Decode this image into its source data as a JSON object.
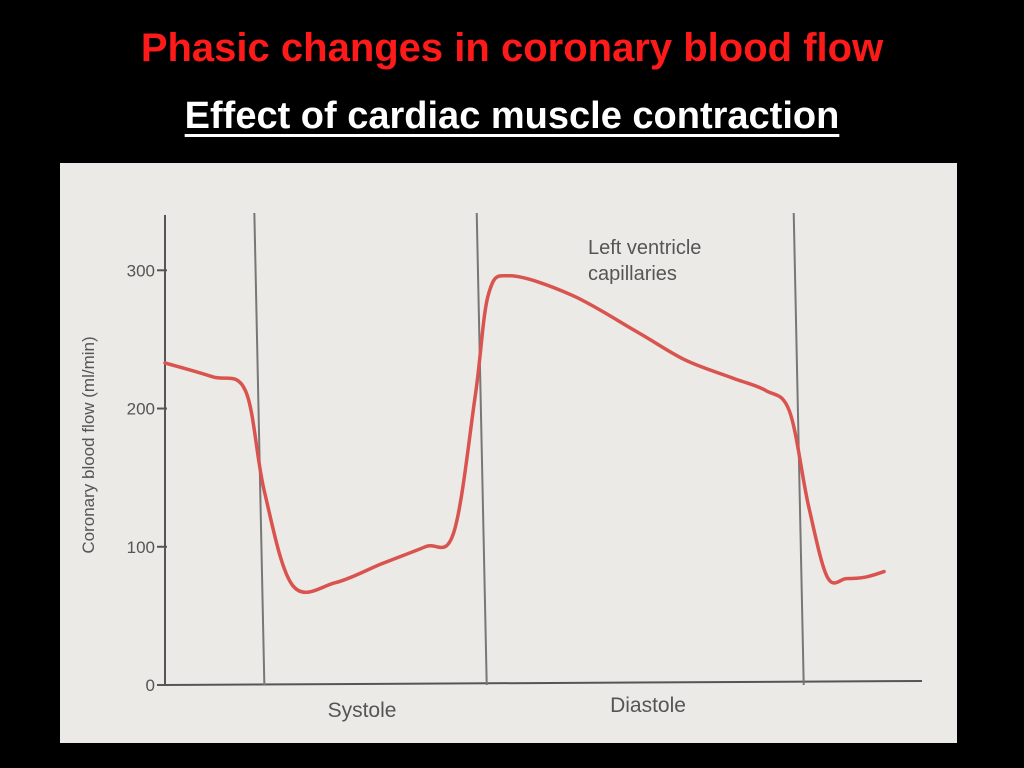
{
  "slide": {
    "title": "Phasic changes in coronary blood flow",
    "subtitle": "Effect of cardiac muscle contraction"
  },
  "colors": {
    "background": "#000000",
    "title": "#ff1a1a",
    "subtitle": "#ffffff",
    "curve": "#d9534f",
    "figure_background": "#eceae6"
  },
  "chart_data": {
    "type": "line",
    "title": "",
    "ylabel": "Coronary blood flow (ml/min)",
    "xlabel": "",
    "ylim": [
      0,
      340
    ],
    "yticks": [
      0,
      100,
      200,
      300
    ],
    "ytick_labels": [
      "0",
      "100",
      "200",
      "300"
    ],
    "grid": false,
    "phase_labels": [
      "Systole",
      "Diastole"
    ],
    "annotation": [
      "Left ventricle",
      "capillaries"
    ],
    "series": [
      {
        "name": "Left ventricle capillaries",
        "x": [
          0,
          0.5,
          0.85,
          1.05,
          1.35,
          1.8,
          2.3,
          2.75,
          3.05,
          3.28,
          3.42,
          3.65,
          4.3,
          5.0,
          5.5,
          6.0,
          6.35,
          6.6,
          6.8,
          7.0,
          7.2,
          7.4,
          7.6
        ],
        "y": [
          233,
          223,
          213,
          140,
          72,
          74,
          88,
          100,
          110,
          210,
          283,
          296,
          282,
          255,
          235,
          222,
          213,
          198,
          130,
          78,
          77,
          78,
          82
        ]
      }
    ],
    "phase_boundaries_x": [
      1.05,
      3.4,
      6.75
    ],
    "xlim": [
      0,
      8
    ]
  }
}
